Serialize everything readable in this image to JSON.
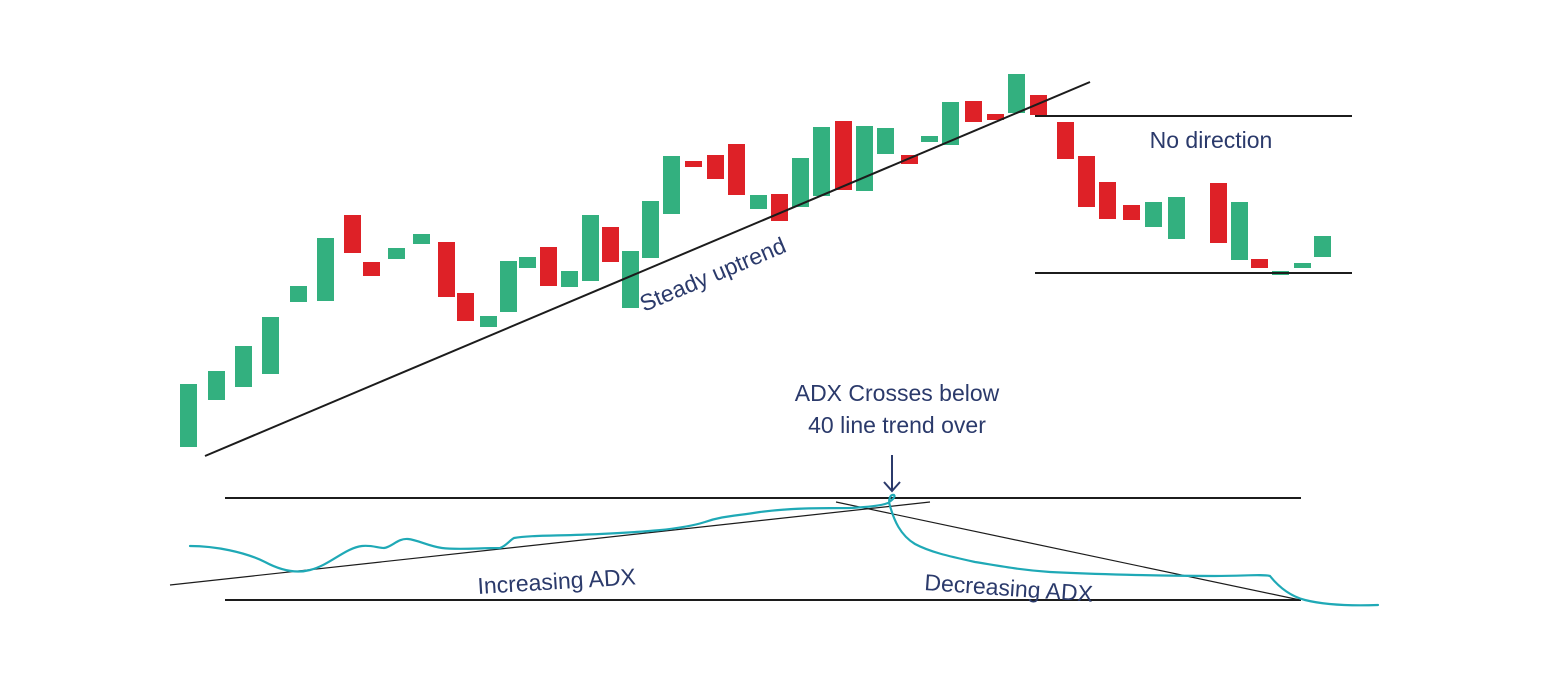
{
  "colors": {
    "bullish": "#33b07f",
    "bearish": "#de2127",
    "line": "#1c1c1c",
    "adx_line": "#1fa9b6",
    "text": "#2b3a6b",
    "background": "#ffffff"
  },
  "labels": {
    "steady_uptrend": "Steady uptrend",
    "no_direction": "No direction",
    "adx_cross_line1": "ADX Crosses below",
    "adx_cross_line2": "40 line trend over",
    "increasing_adx": "Increasing ADX",
    "decreasing_adx": "Decreasing ADX"
  },
  "candles": [
    {
      "dir": "up"
    },
    {
      "dir": "up"
    },
    {
      "dir": "up"
    },
    {
      "dir": "up"
    },
    {
      "dir": "up"
    },
    {
      "dir": "up"
    },
    {
      "dir": "down"
    },
    {
      "dir": "down"
    },
    {
      "dir": "up"
    },
    {
      "dir": "up"
    },
    {
      "dir": "down"
    },
    {
      "dir": "down"
    },
    {
      "dir": "up"
    },
    {
      "dir": "up"
    },
    {
      "dir": "up"
    },
    {
      "dir": "down"
    },
    {
      "dir": "up"
    },
    {
      "dir": "up"
    },
    {
      "dir": "down"
    },
    {
      "dir": "up"
    },
    {
      "dir": "up"
    },
    {
      "dir": "up"
    },
    {
      "dir": "down"
    },
    {
      "dir": "down"
    },
    {
      "dir": "down"
    },
    {
      "dir": "up"
    },
    {
      "dir": "down"
    },
    {
      "dir": "up"
    },
    {
      "dir": "up"
    },
    {
      "dir": "down"
    },
    {
      "dir": "up"
    },
    {
      "dir": "up"
    },
    {
      "dir": "down"
    },
    {
      "dir": "up"
    },
    {
      "dir": "up"
    },
    {
      "dir": "down"
    },
    {
      "dir": "down"
    },
    {
      "dir": "up"
    },
    {
      "dir": "down"
    },
    {
      "dir": "down"
    },
    {
      "dir": "down"
    },
    {
      "dir": "down"
    },
    {
      "dir": "down"
    },
    {
      "dir": "up"
    },
    {
      "dir": "up"
    },
    {
      "dir": "down"
    },
    {
      "dir": "up"
    },
    {
      "dir": "down"
    },
    {
      "dir": "up"
    },
    {
      "dir": "up"
    },
    {
      "dir": "up"
    }
  ]
}
